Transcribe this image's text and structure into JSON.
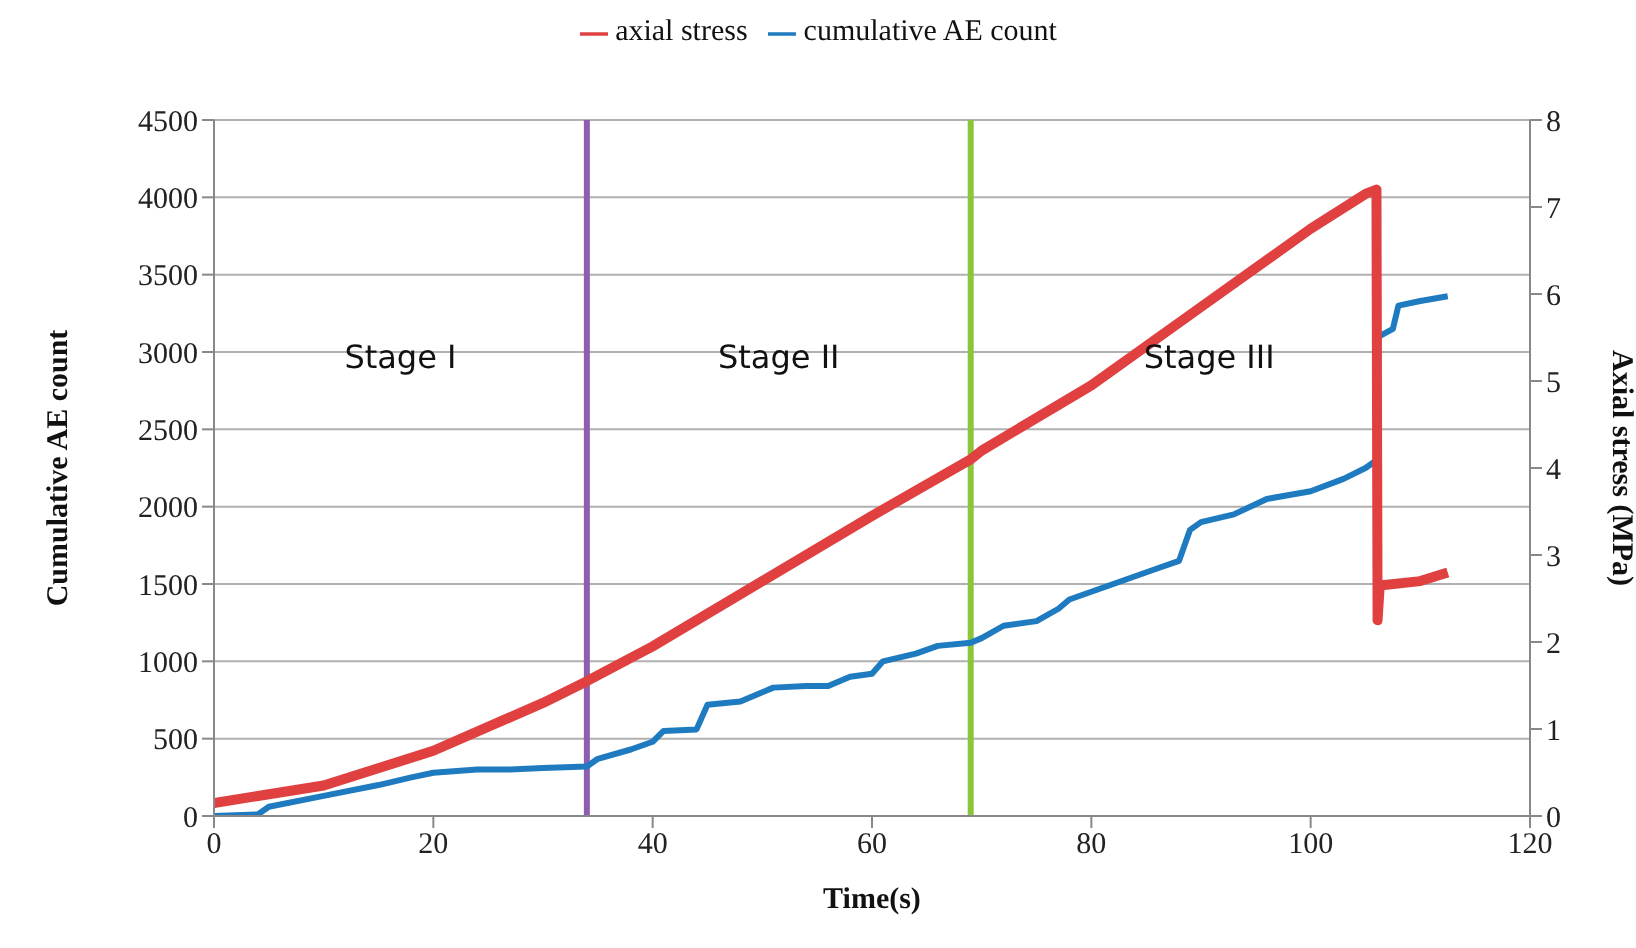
{
  "chart_data": {
    "type": "line",
    "xlabel": "Time(s)",
    "ylabel": "Cumulative AE count",
    "y2label": "Axial stress (MPa)",
    "xlim": [
      0,
      120
    ],
    "xticks": [
      0,
      20,
      40,
      60,
      80,
      100,
      120
    ],
    "ylim": [
      0,
      4500
    ],
    "yticks": [
      0,
      500,
      1000,
      1500,
      2000,
      2500,
      3000,
      3500,
      4000,
      4500
    ],
    "y2lim": [
      0,
      8
    ],
    "y2ticks": [
      0,
      1,
      2,
      3,
      4,
      5,
      6,
      7,
      8
    ],
    "grid": "y",
    "legend": "top",
    "marker": "none",
    "line_style": "solid",
    "series": [
      {
        "name": "cumulative AE count",
        "color": "#1f7bbf",
        "x": [
          0,
          4,
          5,
          10,
          15,
          18,
          20,
          24,
          27,
          30,
          34,
          35,
          38,
          40,
          41,
          44,
          45,
          48,
          50,
          51,
          54,
          56,
          58,
          60,
          61,
          64,
          66,
          69,
          70,
          72,
          75,
          77,
          78,
          80,
          82,
          84,
          86,
          88,
          89,
          90,
          93,
          96,
          100,
          103,
          105,
          106,
          106.2,
          107.5,
          108,
          110,
          112.5
        ],
        "values": [
          0,
          10,
          60,
          130,
          200,
          250,
          280,
          300,
          300,
          310,
          320,
          370,
          430,
          480,
          550,
          560,
          720,
          740,
          800,
          830,
          840,
          840,
          900,
          920,
          1000,
          1050,
          1100,
          1120,
          1150,
          1230,
          1260,
          1340,
          1400,
          1450,
          1500,
          1550,
          1600,
          1650,
          1850,
          1900,
          1950,
          2050,
          2100,
          2180,
          2250,
          2300,
          3100,
          3150,
          3300,
          3330,
          3360
        ]
      },
      {
        "name": "axial stress",
        "color": "#e04040",
        "axis": "y2",
        "x": [
          0,
          10,
          20,
          30,
          34,
          40,
          50,
          60,
          69,
          70,
          80,
          90,
          100,
          105,
          106,
          106.1,
          106.3,
          110,
          112.5
        ],
        "values": [
          0.15,
          0.35,
          0.75,
          1.3,
          1.55,
          1.95,
          2.7,
          3.45,
          4.1,
          4.2,
          4.95,
          5.85,
          6.75,
          7.15,
          7.2,
          2.25,
          2.65,
          2.7,
          2.8
        ]
      }
    ],
    "ref_lines": [
      {
        "axis": "x",
        "value": 34,
        "color": "#8e5fb0"
      },
      {
        "axis": "x",
        "value": 69,
        "color": "#8cc43c"
      }
    ],
    "annotations": [
      "Stage I",
      "Stage II",
      "Stage III"
    ]
  }
}
